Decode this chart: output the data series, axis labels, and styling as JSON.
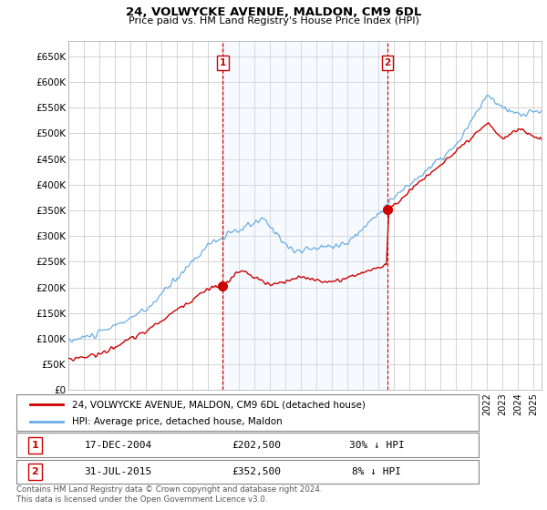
{
  "title": "24, VOLWYCKE AVENUE, MALDON, CM9 6DL",
  "subtitle": "Price paid vs. HM Land Registry's House Price Index (HPI)",
  "ylabel_ticks": [
    "£0",
    "£50K",
    "£100K",
    "£150K",
    "£200K",
    "£250K",
    "£300K",
    "£350K",
    "£400K",
    "£450K",
    "£500K",
    "£550K",
    "£600K",
    "£650K"
  ],
  "ylabel_values": [
    0,
    50000,
    100000,
    150000,
    200000,
    250000,
    300000,
    350000,
    400000,
    450000,
    500000,
    550000,
    600000,
    650000
  ],
  "ylim": [
    0,
    680000
  ],
  "purchase1": {
    "date_num": 2004.96,
    "price": 202500,
    "label": "1",
    "text": "17-DEC-2004",
    "price_text": "£202,500",
    "pct_text": "30% ↓ HPI"
  },
  "purchase2": {
    "date_num": 2015.58,
    "price": 352500,
    "label": "2",
    "text": "31-JUL-2015",
    "price_text": "£352,500",
    "pct_text": "8% ↓ HPI"
  },
  "hpi_color": "#6aade4",
  "price_color": "#cc0000",
  "grid_color": "#cccccc",
  "background_color": "#ffffff",
  "shade_color": "#ddeeff",
  "legend_label_price": "24, VOLWYCKE AVENUE, MALDON, CM9 6DL (detached house)",
  "legend_label_hpi": "HPI: Average price, detached house, Maldon",
  "footnote": "Contains HM Land Registry data © Crown copyright and database right 2024.\nThis data is licensed under the Open Government Licence v3.0.",
  "xmin": 1995.0,
  "xmax": 2025.5
}
